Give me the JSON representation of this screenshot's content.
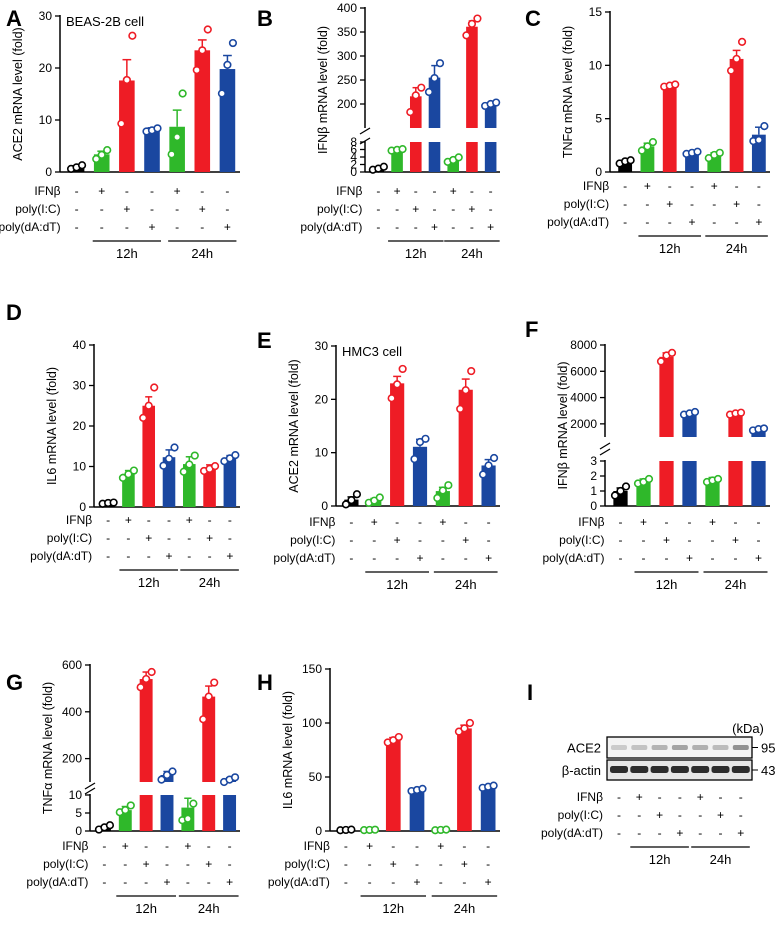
{
  "figure": {
    "condition_labels": [
      "IFNβ",
      "poly(I:C)",
      "poly(dA:dT)"
    ],
    "treatment_matrix": [
      [
        "-",
        "+",
        "-",
        "-",
        "+",
        "-",
        "-"
      ],
      [
        "-",
        "-",
        "+",
        "-",
        "-",
        "+",
        "-"
      ],
      [
        "-",
        "-",
        "-",
        "+",
        "-",
        "-",
        "+"
      ]
    ],
    "time_labels": [
      "12h",
      "24h"
    ],
    "group_colors": [
      "#000000",
      "#2fb82a",
      "#ee1c25",
      "#1a47a0",
      "#2fb82a",
      "#ee1c25",
      "#1a47a0"
    ]
  },
  "chart_data": [
    {
      "id": "A",
      "type": "bar",
      "note": "BEAS-2B cell",
      "ylabel": "ACE2  mRNA level (fold)",
      "segments": [
        {
          "lim": [
            0,
            30
          ],
          "ticks": [
            0,
            10,
            20,
            30
          ]
        }
      ],
      "values": [
        1,
        3.4,
        17.6,
        8.0,
        8.7,
        23.4,
        19.8
      ],
      "errors": [
        0.2,
        0.6,
        4.0,
        0.5,
        3.2,
        2.0,
        2.6
      ],
      "points": [
        [
          0.6,
          0.9,
          1.3
        ],
        [
          2.5,
          3.3,
          4.2
        ],
        [
          9.3,
          17.7,
          26.2
        ],
        [
          7.8,
          8.0,
          8.4
        ],
        [
          3.4,
          6.7,
          15.1
        ],
        [
          19.6,
          23.4,
          27.4
        ],
        [
          15.1,
          20.6,
          24.8
        ]
      ]
    },
    {
      "id": "B",
      "type": "bar",
      "ylabel": "IFNβ  mRNA level (fold)",
      "segments": [
        {
          "lim": [
            0,
            8
          ],
          "ticks": [
            0,
            2,
            4,
            6,
            8
          ]
        },
        {
          "lim": [
            150,
            400
          ],
          "ticks": [
            200,
            250,
            300,
            350,
            400
          ]
        }
      ],
      "values": [
        1,
        5.9,
        216,
        255,
        3.3,
        361,
        200
      ],
      "errors": [
        0.2,
        0.3,
        18,
        25,
        0.5,
        12,
        3
      ],
      "points": [
        [
          0.6,
          0.9,
          1.4
        ],
        [
          5.7,
          5.9,
          6.1
        ],
        [
          183,
          218,
          234
        ],
        [
          225,
          254,
          285
        ],
        [
          2.7,
          3.2,
          3.9
        ],
        [
          343,
          367,
          378
        ],
        [
          196,
          200,
          203
        ]
      ]
    },
    {
      "id": "C",
      "type": "bar",
      "ylabel": "TNFα  mRNA level (fold)",
      "segments": [
        {
          "lim": [
            0,
            15
          ],
          "ticks": [
            0,
            5,
            10,
            15
          ]
        }
      ],
      "values": [
        1,
        2.4,
        8.1,
        1.8,
        1.6,
        10.6,
        3.5
      ],
      "errors": [
        0.1,
        0.3,
        0.1,
        0.1,
        0.2,
        0.8,
        0.7
      ],
      "points": [
        [
          0.8,
          1.0,
          1.1
        ],
        [
          2.0,
          2.4,
          2.8
        ],
        [
          8.0,
          8.1,
          8.2
        ],
        [
          1.7,
          1.8,
          1.9
        ],
        [
          1.3,
          1.6,
          1.8
        ],
        [
          9.5,
          10.6,
          12.2
        ],
        [
          2.9,
          3.0,
          4.3
        ]
      ]
    },
    {
      "id": "D",
      "type": "bar",
      "ylabel": "IL6 mRNA level (fold)",
      "segments": [
        {
          "lim": [
            0,
            40
          ],
          "ticks": [
            0,
            10,
            20,
            30,
            40
          ]
        }
      ],
      "values": [
        1,
        8.2,
        25,
        12.3,
        10.6,
        9.6,
        12.0
      ],
      "errors": [
        0.1,
        0.8,
        2.2,
        1.8,
        1.8,
        0.8,
        0.7
      ],
      "points": [
        [
          0.8,
          1.0,
          1.1
        ],
        [
          7.2,
          8.1,
          9.0
        ],
        [
          22,
          25,
          29.5
        ],
        [
          10.2,
          11.9,
          14.7
        ],
        [
          8.7,
          10.5,
          12.7
        ],
        [
          8.9,
          9.4,
          10.1
        ],
        [
          11.3,
          12.0,
          12.8
        ]
      ]
    },
    {
      "id": "E",
      "type": "bar",
      "note": "HMC3 cell",
      "ylabel": "ACE2  mRNA level (fold)",
      "segments": [
        {
          "lim": [
            0,
            30
          ],
          "ticks": [
            0,
            10,
            20,
            30
          ]
        }
      ],
      "values": [
        1.2,
        1.1,
        23,
        11.1,
        2.8,
        21.8,
        7.6
      ],
      "errors": [
        0.5,
        0.3,
        1.3,
        1.4,
        0.7,
        2.0,
        1.1
      ],
      "points": [
        [
          0.3,
          1.1,
          2.2
        ],
        [
          0.6,
          1.0,
          1.6
        ],
        [
          20.2,
          22.8,
          25.7
        ],
        [
          8.8,
          12.0,
          12.6
        ],
        [
          1.5,
          2.9,
          3.9
        ],
        [
          18.2,
          21.7,
          25.3
        ],
        [
          5.9,
          7.6,
          9.0
        ]
      ]
    },
    {
      "id": "F",
      "type": "bar",
      "ylabel": "IFNβ  mRNA level (fold)",
      "segments": [
        {
          "lim": [
            0,
            3
          ],
          "ticks": [
            0,
            1,
            2,
            3
          ]
        },
        {
          "lim": [
            1000,
            8000
          ],
          "ticks": [
            2000,
            4000,
            6000,
            8000
          ]
        }
      ],
      "values": [
        1,
        1.6,
        7100,
        2800,
        1.7,
        2800,
        1600
      ],
      "errors": [
        0.2,
        0.2,
        300,
        90,
        0.2,
        60,
        60
      ],
      "points": [
        [
          0.7,
          1.0,
          1.3
        ],
        [
          1.5,
          1.6,
          1.8
        ],
        [
          6750,
          7200,
          7400
        ],
        [
          2700,
          2800,
          2900
        ],
        [
          1.6,
          1.7,
          1.8
        ],
        [
          2700,
          2800,
          2850
        ],
        [
          1500,
          1600,
          1650
        ]
      ]
    },
    {
      "id": "G",
      "type": "bar",
      "ylabel": "TNFα  mRNA level (fold)",
      "segments": [
        {
          "lim": [
            0,
            10
          ],
          "ticks": [
            0,
            5,
            10
          ]
        },
        {
          "lim": [
            100,
            600
          ],
          "ticks": [
            200,
            400,
            600
          ]
        }
      ],
      "values": [
        1,
        5.8,
        540,
        130,
        6.5,
        465,
        110
      ],
      "errors": [
        0.4,
        1.0,
        30,
        15,
        2.6,
        45,
        8
      ],
      "points": [
        [
          0.4,
          1.0,
          1.6
        ],
        [
          5.2,
          5.8,
          7.1
        ],
        [
          505,
          540,
          570
        ],
        [
          110,
          130,
          145
        ],
        [
          3.0,
          3.4,
          7.6
        ],
        [
          368,
          465,
          525
        ],
        [
          100,
          110,
          120
        ]
      ]
    },
    {
      "id": "H",
      "type": "bar",
      "ylabel": "IL6 mRNA level (fold)",
      "segments": [
        {
          "lim": [
            0,
            150
          ],
          "ticks": [
            0,
            50,
            100,
            150
          ]
        }
      ],
      "values": [
        1,
        1,
        84,
        38,
        1,
        95,
        41
      ],
      "errors": [
        0.2,
        0.2,
        2.5,
        1.5,
        0.2,
        3.0,
        1.0
      ],
      "points": [
        [
          0.7,
          1.0,
          1.3
        ],
        [
          0.8,
          1.0,
          1.2
        ],
        [
          82,
          84,
          87
        ],
        [
          37,
          38,
          39
        ],
        [
          0.7,
          1.0,
          1.3
        ],
        [
          92,
          95,
          100
        ],
        [
          40,
          41,
          42
        ]
      ]
    }
  ],
  "panel_i": {
    "id": "I",
    "unit": "(kDa)",
    "bands": [
      {
        "name": "ACE2",
        "mw": "95"
      },
      {
        "name": "β-actin",
        "mw": "43"
      }
    ]
  }
}
